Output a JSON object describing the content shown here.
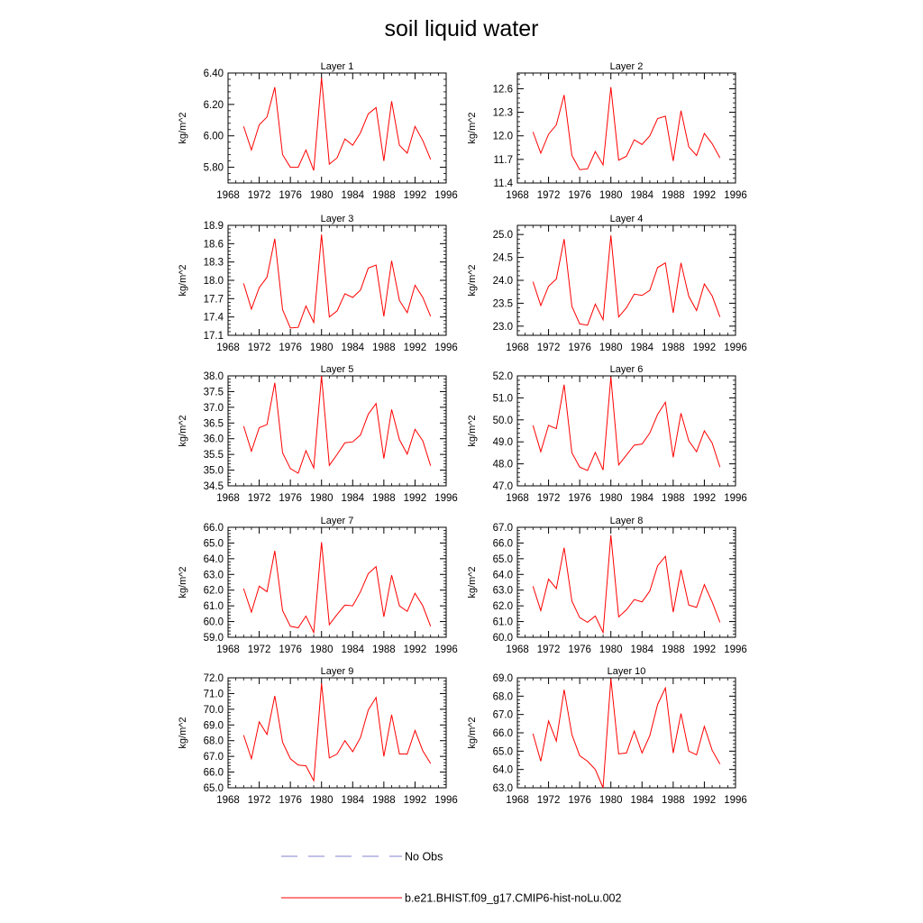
{
  "title": "soil liquid water",
  "colors": {
    "model": "#ff0000",
    "obs": "#8080cc",
    "axis": "#000000"
  },
  "legend": {
    "obs_label": "No Obs",
    "model_label": "b.e21.BHIST.f09_g17.CMIP6-hist-noLu.002"
  },
  "chart_data": [
    {
      "type": "line",
      "title": "Layer 1",
      "ylabel": "kg/m^2",
      "xlim": [
        1968,
        1996
      ],
      "ylim": [
        5.7,
        6.4
      ],
      "yticks": [
        5.8,
        6.0,
        6.2,
        6.4
      ],
      "ytick_labels": [
        "5.80",
        "6.00",
        "6.20",
        "6.40"
      ],
      "xticks": [
        1968,
        1972,
        1976,
        1980,
        1984,
        1988,
        1992,
        1996
      ],
      "xtick_labels": [
        "1968",
        "1972",
        "1976",
        "1980",
        "1984",
        "1988",
        "1992",
        "1996"
      ],
      "x": [
        1970,
        1971,
        1972,
        1973,
        1974,
        1975,
        1976,
        1977,
        1978,
        1979,
        1980,
        1981,
        1982,
        1983,
        1984,
        1985,
        1986,
        1987,
        1988,
        1989,
        1990,
        1991,
        1992,
        1993,
        1994
      ],
      "values": [
        6.06,
        5.91,
        6.07,
        6.12,
        6.31,
        5.88,
        5.8,
        5.8,
        5.91,
        5.78,
        6.37,
        5.82,
        5.86,
        5.98,
        5.94,
        6.02,
        6.14,
        6.18,
        5.84,
        6.22,
        5.94,
        5.89,
        6.06,
        5.97,
        5.85
      ]
    },
    {
      "type": "line",
      "title": "Layer 2",
      "ylabel": "kg/m^2",
      "xlim": [
        1968,
        1996
      ],
      "ylim": [
        11.4,
        12.8
      ],
      "yticks": [
        11.4,
        11.7,
        12.0,
        12.3,
        12.6
      ],
      "ytick_labels": [
        "11.4",
        "11.7",
        "12.0",
        "12.3",
        "12.6"
      ],
      "xticks": [
        1968,
        1972,
        1976,
        1980,
        1984,
        1988,
        1992,
        1996
      ],
      "xtick_labels": [
        "1968",
        "1972",
        "1976",
        "1980",
        "1984",
        "1988",
        "1992",
        "1996"
      ],
      "x": [
        1970,
        1971,
        1972,
        1973,
        1974,
        1975,
        1976,
        1977,
        1978,
        1979,
        1980,
        1981,
        1982,
        1983,
        1984,
        1985,
        1986,
        1987,
        1988,
        1989,
        1990,
        1991,
        1992,
        1993,
        1994
      ],
      "values": [
        12.05,
        11.78,
        12.02,
        12.14,
        12.52,
        11.75,
        11.57,
        11.58,
        11.8,
        11.63,
        12.62,
        11.69,
        11.74,
        11.95,
        11.89,
        12.0,
        12.22,
        12.25,
        11.68,
        12.32,
        11.86,
        11.75,
        12.03,
        11.9,
        11.72
      ]
    },
    {
      "type": "line",
      "title": "Layer 3",
      "ylabel": "kg/m^2",
      "xlim": [
        1968,
        1996
      ],
      "ylim": [
        17.1,
        18.9
      ],
      "yticks": [
        17.1,
        17.4,
        17.7,
        18.0,
        18.3,
        18.6,
        18.9
      ],
      "ytick_labels": [
        "17.1",
        "17.4",
        "17.7",
        "18.0",
        "18.3",
        "18.6",
        "18.9"
      ],
      "xticks": [
        1968,
        1972,
        1976,
        1980,
        1984,
        1988,
        1992,
        1996
      ],
      "xtick_labels": [
        "1968",
        "1972",
        "1976",
        "1980",
        "1984",
        "1988",
        "1992",
        "1996"
      ],
      "x": [
        1970,
        1971,
        1972,
        1973,
        1974,
        1975,
        1976,
        1977,
        1978,
        1979,
        1980,
        1981,
        1982,
        1983,
        1984,
        1985,
        1986,
        1987,
        1988,
        1989,
        1990,
        1991,
        1992,
        1993,
        1994
      ],
      "values": [
        17.95,
        17.53,
        17.88,
        18.05,
        18.68,
        17.52,
        17.22,
        17.23,
        17.58,
        17.31,
        18.75,
        17.4,
        17.5,
        17.78,
        17.72,
        17.84,
        18.2,
        18.25,
        17.41,
        18.32,
        17.67,
        17.47,
        17.92,
        17.72,
        17.41
      ]
    },
    {
      "type": "line",
      "title": "Layer 4",
      "ylabel": "kg/m^2",
      "xlim": [
        1968,
        1996
      ],
      "ylim": [
        22.8,
        25.2
      ],
      "yticks": [
        23.0,
        23.5,
        24.0,
        24.5,
        25.0
      ],
      "ytick_labels": [
        "23.0",
        "23.5",
        "24.0",
        "24.5",
        "25.0"
      ],
      "xticks": [
        1968,
        1972,
        1976,
        1980,
        1984,
        1988,
        1992,
        1996
      ],
      "xtick_labels": [
        "1968",
        "1972",
        "1976",
        "1980",
        "1984",
        "1988",
        "1992",
        "1996"
      ],
      "x": [
        1970,
        1971,
        1972,
        1973,
        1974,
        1975,
        1976,
        1977,
        1978,
        1979,
        1980,
        1981,
        1982,
        1983,
        1984,
        1985,
        1986,
        1987,
        1988,
        1989,
        1990,
        1991,
        1992,
        1993,
        1994
      ],
      "values": [
        23.97,
        23.45,
        23.87,
        24.03,
        24.9,
        23.43,
        23.05,
        23.02,
        23.48,
        23.14,
        24.98,
        23.2,
        23.4,
        23.7,
        23.67,
        23.78,
        24.28,
        24.38,
        23.29,
        24.38,
        23.65,
        23.34,
        23.92,
        23.66,
        23.2
      ]
    },
    {
      "type": "line",
      "title": "Layer 5",
      "ylabel": "kg/m^2",
      "xlim": [
        1968,
        1996
      ],
      "ylim": [
        34.5,
        38.0
      ],
      "yticks": [
        34.5,
        35.0,
        35.5,
        36.0,
        36.5,
        37.0,
        37.5,
        38.0
      ],
      "ytick_labels": [
        "34.5",
        "35.0",
        "35.5",
        "36.0",
        "36.5",
        "37.0",
        "37.5",
        "38.0"
      ],
      "xticks": [
        1968,
        1972,
        1976,
        1980,
        1984,
        1988,
        1992,
        1996
      ],
      "xtick_labels": [
        "1968",
        "1972",
        "1976",
        "1980",
        "1984",
        "1988",
        "1992",
        "1996"
      ],
      "x": [
        1970,
        1971,
        1972,
        1973,
        1974,
        1975,
        1976,
        1977,
        1978,
        1979,
        1980,
        1981,
        1982,
        1983,
        1984,
        1985,
        1986,
        1987,
        1988,
        1989,
        1990,
        1991,
        1992,
        1993,
        1994
      ],
      "values": [
        36.4,
        35.6,
        36.35,
        36.45,
        37.78,
        35.55,
        35.05,
        34.9,
        35.62,
        35.07,
        38.0,
        35.15,
        35.5,
        35.87,
        35.9,
        36.12,
        36.78,
        37.12,
        35.37,
        36.93,
        35.97,
        35.51,
        36.3,
        35.93,
        35.14
      ]
    },
    {
      "type": "line",
      "title": "Layer 6",
      "ylabel": "kg/m^2",
      "xlim": [
        1968,
        1996
      ],
      "ylim": [
        47.0,
        52.0
      ],
      "yticks": [
        47.0,
        48.0,
        49.0,
        50.0,
        51.0,
        52.0
      ],
      "ytick_labels": [
        "47.0",
        "48.0",
        "49.0",
        "50.0",
        "51.0",
        "52.0"
      ],
      "xticks": [
        1968,
        1972,
        1976,
        1980,
        1984,
        1988,
        1992,
        1996
      ],
      "xtick_labels": [
        "1968",
        "1972",
        "1976",
        "1980",
        "1984",
        "1988",
        "1992",
        "1996"
      ],
      "x": [
        1970,
        1971,
        1972,
        1973,
        1974,
        1975,
        1976,
        1977,
        1978,
        1979,
        1980,
        1981,
        1982,
        1983,
        1984,
        1985,
        1986,
        1987,
        1988,
        1989,
        1990,
        1991,
        1992,
        1993,
        1994
      ],
      "values": [
        49.75,
        48.55,
        49.75,
        49.6,
        51.6,
        48.5,
        47.85,
        47.7,
        48.52,
        47.72,
        51.95,
        47.95,
        48.4,
        48.85,
        48.9,
        49.4,
        50.25,
        50.8,
        48.3,
        50.3,
        49.05,
        48.55,
        49.5,
        48.95,
        47.85
      ]
    },
    {
      "type": "line",
      "title": "Layer 7",
      "ylabel": "kg/m^2",
      "xlim": [
        1968,
        1996
      ],
      "ylim": [
        59.0,
        66.0
      ],
      "yticks": [
        59.0,
        60.0,
        61.0,
        62.0,
        63.0,
        64.0,
        65.0,
        66.0
      ],
      "ytick_labels": [
        "59.0",
        "60.0",
        "61.0",
        "62.0",
        "63.0",
        "64.0",
        "65.0",
        "66.0"
      ],
      "xticks": [
        1968,
        1972,
        1976,
        1980,
        1984,
        1988,
        1992,
        1996
      ],
      "xtick_labels": [
        "1968",
        "1972",
        "1976",
        "1980",
        "1984",
        "1988",
        "1992",
        "1996"
      ],
      "x": [
        1970,
        1971,
        1972,
        1973,
        1974,
        1975,
        1976,
        1977,
        1978,
        1979,
        1980,
        1981,
        1982,
        1983,
        1984,
        1985,
        1986,
        1987,
        1988,
        1989,
        1990,
        1991,
        1992,
        1993,
        1994
      ],
      "values": [
        62.1,
        60.6,
        62.25,
        61.9,
        64.5,
        60.7,
        59.7,
        59.6,
        60.35,
        59.3,
        65.05,
        59.8,
        60.45,
        61.05,
        61.0,
        61.9,
        63.05,
        63.5,
        60.3,
        62.95,
        61.0,
        60.65,
        61.8,
        61.0,
        59.7
      ]
    },
    {
      "type": "line",
      "title": "Layer 8",
      "ylabel": "kg/m^2",
      "xlim": [
        1968,
        1996
      ],
      "ylim": [
        60.0,
        67.0
      ],
      "yticks": [
        60.0,
        61.0,
        62.0,
        63.0,
        64.0,
        65.0,
        66.0,
        67.0
      ],
      "ytick_labels": [
        "60.0",
        "61.0",
        "62.0",
        "63.0",
        "64.0",
        "65.0",
        "66.0",
        "67.0"
      ],
      "xticks": [
        1968,
        1972,
        1976,
        1980,
        1984,
        1988,
        1992,
        1996
      ],
      "xtick_labels": [
        "1968",
        "1972",
        "1976",
        "1980",
        "1984",
        "1988",
        "1992",
        "1996"
      ],
      "x": [
        1970,
        1971,
        1972,
        1973,
        1974,
        1975,
        1976,
        1977,
        1978,
        1979,
        1980,
        1981,
        1982,
        1983,
        1984,
        1985,
        1986,
        1987,
        1988,
        1989,
        1990,
        1991,
        1992,
        1993,
        1994
      ],
      "values": [
        63.25,
        61.7,
        63.7,
        63.1,
        65.7,
        62.3,
        61.25,
        60.95,
        61.35,
        60.3,
        66.5,
        61.3,
        61.75,
        62.4,
        62.25,
        62.95,
        64.55,
        65.15,
        61.6,
        64.3,
        62.05,
        61.9,
        63.35,
        62.25,
        60.95
      ]
    },
    {
      "type": "line",
      "title": "Layer 9",
      "ylabel": "kg/m^2",
      "xlim": [
        1968,
        1996
      ],
      "ylim": [
        65.0,
        72.0
      ],
      "yticks": [
        65.0,
        66.0,
        67.0,
        68.0,
        69.0,
        70.0,
        71.0,
        72.0
      ],
      "ytick_labels": [
        "65.0",
        "66.0",
        "67.0",
        "68.0",
        "69.0",
        "70.0",
        "71.0",
        "72.0"
      ],
      "xticks": [
        1968,
        1972,
        1976,
        1980,
        1984,
        1988,
        1992,
        1996
      ],
      "xtick_labels": [
        "1968",
        "1972",
        "1976",
        "1980",
        "1984",
        "1988",
        "1992",
        "1996"
      ],
      "x": [
        1970,
        1971,
        1972,
        1973,
        1974,
        1975,
        1976,
        1977,
        1978,
        1979,
        1980,
        1981,
        1982,
        1983,
        1984,
        1985,
        1986,
        1987,
        1988,
        1989,
        1990,
        1991,
        1992,
        1993,
        1994
      ],
      "values": [
        68.35,
        66.85,
        69.2,
        68.4,
        70.85,
        67.9,
        66.85,
        66.45,
        66.4,
        65.45,
        71.65,
        66.9,
        67.15,
        68.0,
        67.3,
        68.2,
        69.95,
        70.75,
        67.0,
        69.65,
        67.15,
        67.15,
        68.65,
        67.35,
        66.55
      ]
    },
    {
      "type": "line",
      "title": "Layer 10",
      "ylabel": "kg/m^2",
      "xlim": [
        1968,
        1996
      ],
      "ylim": [
        63.0,
        69.0
      ],
      "yticks": [
        63.0,
        64.0,
        65.0,
        66.0,
        67.0,
        68.0,
        69.0
      ],
      "ytick_labels": [
        "63.0",
        "64.0",
        "65.0",
        "66.0",
        "67.0",
        "68.0",
        "69.0"
      ],
      "xticks": [
        1968,
        1972,
        1976,
        1980,
        1984,
        1988,
        1992,
        1996
      ],
      "xtick_labels": [
        "1968",
        "1972",
        "1976",
        "1980",
        "1984",
        "1988",
        "1992",
        "1996"
      ],
      "x": [
        1970,
        1971,
        1972,
        1973,
        1974,
        1975,
        1976,
        1977,
        1978,
        1979,
        1980,
        1981,
        1982,
        1983,
        1984,
        1985,
        1986,
        1987,
        1988,
        1989,
        1990,
        1991,
        1992,
        1993,
        1994
      ],
      "values": [
        65.95,
        64.45,
        66.65,
        65.55,
        68.35,
        65.9,
        64.75,
        64.45,
        64.0,
        63.0,
        68.95,
        64.85,
        64.9,
        66.1,
        64.9,
        65.85,
        67.55,
        68.45,
        64.9,
        67.05,
        65.0,
        64.8,
        66.35,
        65.05,
        64.3
      ]
    }
  ]
}
